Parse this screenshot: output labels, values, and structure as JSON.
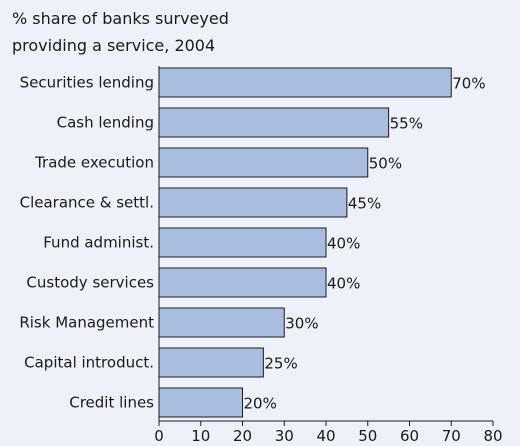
{
  "chart_data": {
    "type": "bar",
    "orientation": "horizontal",
    "title": "% share of banks surveyed",
    "subtitle": "providing a service, 2004",
    "xlabel": "",
    "ylabel": "",
    "categories": [
      "Securities lending",
      "Cash lending",
      "Trade execution",
      "Clearance & settl.",
      "Fund administ.",
      "Custody services",
      "Risk Management",
      "Capital introduct.",
      "Credit lines"
    ],
    "values": [
      70,
      55,
      50,
      45,
      40,
      40,
      30,
      25,
      20
    ],
    "data_labels": [
      "70%",
      "55%",
      "50%",
      "45%",
      "40%",
      "40%",
      "30%",
      "25%",
      "20%"
    ],
    "xlim": [
      0,
      80
    ],
    "x_ticks": [
      0,
      10,
      20,
      30,
      40,
      50,
      60,
      70,
      80
    ],
    "grid": false,
    "legend": "none",
    "colors": {
      "background": "#eef1f8",
      "bar_fill": "#a9bde0",
      "bar_stroke": "#1a1a1a",
      "axis": "#1a1a1a"
    }
  }
}
